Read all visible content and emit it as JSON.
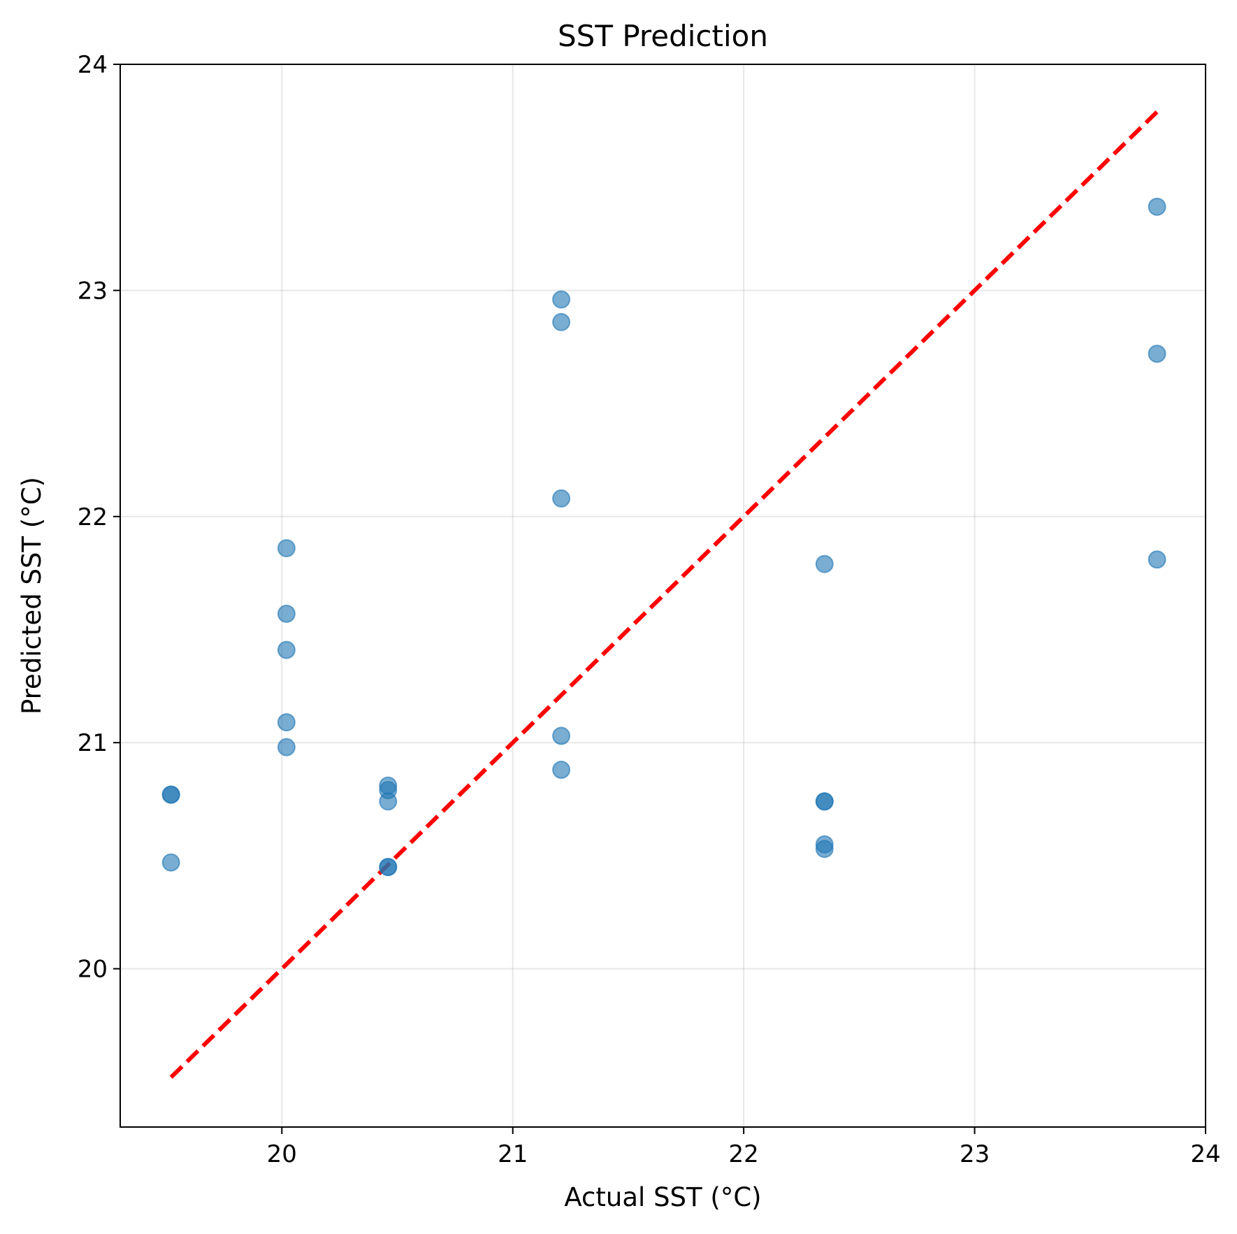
{
  "chart_data": {
    "type": "scatter",
    "title": "SST Prediction",
    "xlabel": "Actual SST (°C)",
    "ylabel": "Predicted SST (°C)",
    "xlim": [
      19.3,
      24.0
    ],
    "ylim": [
      19.3,
      24.0
    ],
    "xticks": [
      20,
      21,
      22,
      23,
      24
    ],
    "yticks": [
      20,
      21,
      22,
      23,
      24
    ],
    "grid": true,
    "point_color": "#1f77b4",
    "reference_line_color": "#ff0000",
    "reference_line": {
      "from": [
        19.52,
        19.52
      ],
      "to": [
        23.79,
        23.79
      ],
      "style": "dashed"
    },
    "points": [
      {
        "x": 19.52,
        "y": 20.77
      },
      {
        "x": 19.52,
        "y": 20.77
      },
      {
        "x": 19.52,
        "y": 20.47
      },
      {
        "x": 20.02,
        "y": 21.86
      },
      {
        "x": 20.02,
        "y": 21.57
      },
      {
        "x": 20.02,
        "y": 21.41
      },
      {
        "x": 20.02,
        "y": 21.09
      },
      {
        "x": 20.02,
        "y": 20.98
      },
      {
        "x": 20.46,
        "y": 20.81
      },
      {
        "x": 20.46,
        "y": 20.79
      },
      {
        "x": 20.46,
        "y": 20.74
      },
      {
        "x": 20.46,
        "y": 20.45
      },
      {
        "x": 20.46,
        "y": 20.45
      },
      {
        "x": 21.21,
        "y": 22.96
      },
      {
        "x": 21.21,
        "y": 22.86
      },
      {
        "x": 21.21,
        "y": 22.08
      },
      {
        "x": 21.21,
        "y": 21.03
      },
      {
        "x": 21.21,
        "y": 20.88
      },
      {
        "x": 22.35,
        "y": 21.79
      },
      {
        "x": 22.35,
        "y": 20.74
      },
      {
        "x": 22.35,
        "y": 20.74
      },
      {
        "x": 22.35,
        "y": 20.55
      },
      {
        "x": 22.35,
        "y": 20.53
      },
      {
        "x": 23.79,
        "y": 23.37
      },
      {
        "x": 23.79,
        "y": 22.72
      },
      {
        "x": 23.79,
        "y": 21.81
      }
    ]
  }
}
